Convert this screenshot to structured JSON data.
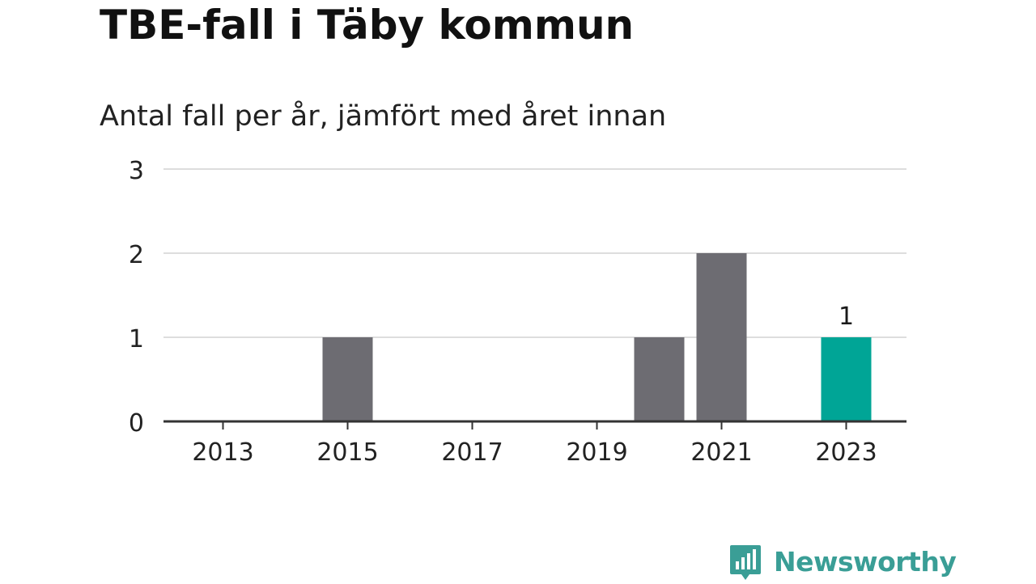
{
  "title": "TBE-fall i Täby kommun",
  "subtitle": "Antal fall per år, jämfört med året innan",
  "brand": {
    "name": "Newsworthy",
    "color": "#3a9e96",
    "icon": "bar-chart-speech-bubble-icon"
  },
  "chart_data": {
    "type": "bar",
    "categories": [
      "2013",
      "2014",
      "2015",
      "2016",
      "2017",
      "2018",
      "2019",
      "2020",
      "2021",
      "2022",
      "2023"
    ],
    "values": [
      0,
      0,
      1,
      0,
      0,
      0,
      0,
      1,
      2,
      0,
      1
    ],
    "highlight_index": 10,
    "highlight_label": "1",
    "x_tick_labels": [
      "2013",
      "2015",
      "2017",
      "2019",
      "2021",
      "2023"
    ],
    "y_ticks": [
      0,
      1,
      2,
      3
    ],
    "ylim": [
      0,
      3
    ],
    "grid": true,
    "colors": {
      "bar": "#6d6c72",
      "highlight": "#00a596",
      "grid": "#dddddd",
      "axis": "#333333"
    }
  }
}
